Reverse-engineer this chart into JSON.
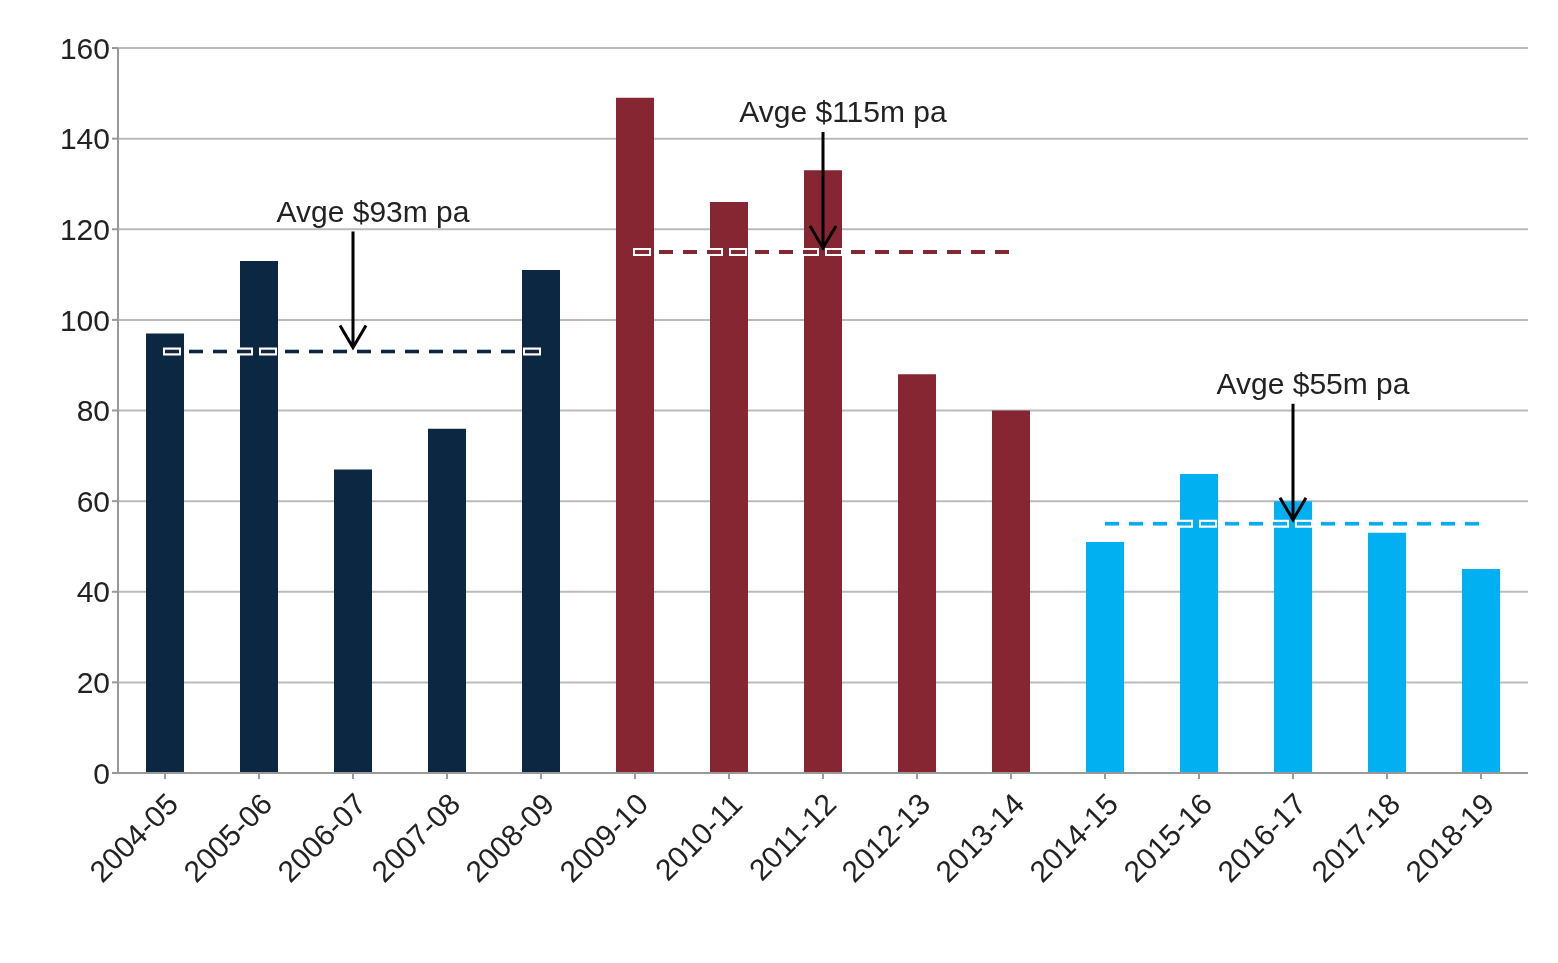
{
  "chart_data": {
    "type": "bar",
    "categories": [
      "2004-05",
      "2005-06",
      "2006-07",
      "2007-08",
      "2008-09",
      "2009-10",
      "2010-11",
      "2011-12",
      "2012-13",
      "2013-14",
      "2014-15",
      "2015-16",
      "2016-17",
      "2017-18",
      "2018-19"
    ],
    "series": [
      {
        "values": [
          97,
          113,
          67,
          76,
          111,
          149,
          126,
          133,
          88,
          80,
          51,
          66,
          60,
          53,
          45
        ],
        "colors": [
          "#0b2742",
          "#0b2742",
          "#0b2742",
          "#0b2742",
          "#0b2742",
          "#862633",
          "#862633",
          "#862633",
          "#862633",
          "#862633",
          "#00b0f0",
          "#00b0f0",
          "#00b0f0",
          "#00b0f0",
          "#00b0f0"
        ]
      },
      {
        "type": "line",
        "color": "#0b2742",
        "line_style": "dashed",
        "values": [
          93,
          93,
          93,
          93,
          93,
          null,
          null,
          null,
          null,
          null,
          null,
          null,
          null,
          null,
          null
        ]
      },
      {
        "type": "line",
        "color": "#862633",
        "line_style": "dashed",
        "values": [
          null,
          null,
          null,
          null,
          null,
          115,
          115,
          115,
          115,
          115,
          null,
          null,
          null,
          null,
          null
        ]
      },
      {
        "type": "line",
        "color": "#00b0f0",
        "line_style": "dashed",
        "values": [
          null,
          null,
          null,
          null,
          null,
          null,
          null,
          null,
          null,
          null,
          55,
          55,
          55,
          55,
          55
        ]
      }
    ],
    "annotations": [
      {
        "text": "Avge $93m pa",
        "x": "2006-07",
        "y": 93
      },
      {
        "text": "Avge $115m pa",
        "x": "2011-12",
        "y": 115
      },
      {
        "text": "Avge $55m pa",
        "x": "2016-17",
        "y": 55
      }
    ],
    "ylim": [
      0,
      160
    ],
    "yticks": [
      0,
      20,
      40,
      60,
      80,
      100,
      120,
      140,
      160
    ],
    "grid": "y",
    "legend": false
  }
}
